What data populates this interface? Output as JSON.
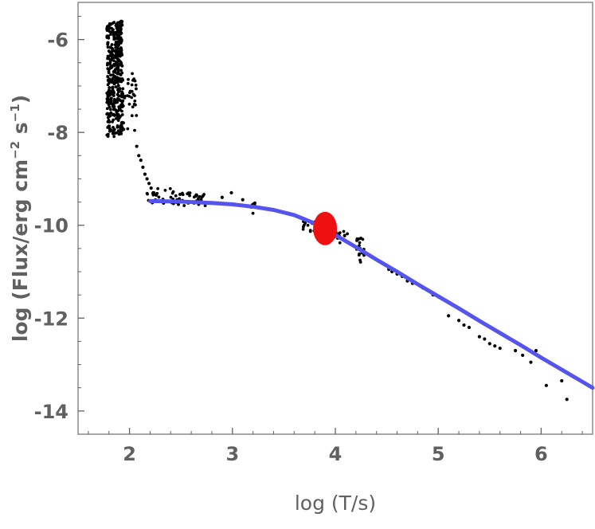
{
  "chart_data": {
    "type": "scatter",
    "title": "",
    "xlabel": "log (T/s)",
    "ylabel_parts": [
      "log (Flux/erg cm",
      "−2",
      " s",
      "−1",
      ")"
    ],
    "xlim": [
      1.5,
      6.5
    ],
    "ylim": [
      -14.5,
      -5.2
    ],
    "x_ticks": [
      2,
      3,
      4,
      5,
      6
    ],
    "y_ticks": [
      -6,
      -8,
      -10,
      -12,
      -14
    ],
    "x_tick_labels": [
      "2",
      "3",
      "4",
      "5",
      "6"
    ],
    "y_tick_labels": [
      "-6",
      "-8",
      "-10",
      "-12",
      "-14"
    ],
    "grid": false,
    "colors": {
      "points": "#000000",
      "fit": "#5555ee",
      "marker": "#ee1111",
      "axis": "#606060"
    },
    "series": [
      {
        "kind": "points",
        "clusters": [
          {
            "x": [
              1.78,
              1.93
            ],
            "y": [
              -8.1,
              -5.6
            ],
            "n": 420
          },
          {
            "x": [
              1.93,
              2.07
            ],
            "y": [
              -8.0,
              -6.7
            ],
            "n": 40
          },
          {
            "x": [
              2.15,
              2.45
            ],
            "y": [
              -9.55,
              -9.2
            ],
            "n": 25
          },
          {
            "x": [
              2.45,
              2.75
            ],
            "y": [
              -9.6,
              -9.3
            ],
            "n": 40
          },
          {
            "x": [
              3.18,
              3.22
            ],
            "y": [
              -9.75,
              -9.5
            ],
            "n": 10
          },
          {
            "x": [
              3.68,
              3.85
            ],
            "y": [
              -10.15,
              -9.9
            ],
            "n": 22
          },
          {
            "x": [
              3.97,
              4.12
            ],
            "y": [
              -10.4,
              -10.1
            ],
            "n": 18
          },
          {
            "x": [
              4.2,
              4.28
            ],
            "y": [
              -10.8,
              -10.25
            ],
            "n": 18
          }
        ],
        "x": [
          2.07,
          2.09,
          2.11,
          2.13,
          2.15,
          2.17,
          2.19,
          2.21,
          2.23,
          2.26,
          2.9,
          2.99,
          3.1,
          4.48,
          4.52,
          4.55,
          4.6,
          4.65,
          4.7,
          4.75,
          4.85,
          4.9,
          4.95,
          5.1,
          5.2,
          5.25,
          5.3,
          5.4,
          5.45,
          5.5,
          5.55,
          5.6,
          5.75,
          5.82,
          5.9,
          5.95,
          6.05,
          6.2,
          6.25
        ],
        "y": [
          -8.3,
          -8.5,
          -8.6,
          -8.75,
          -8.9,
          -9.0,
          -9.1,
          -9.2,
          -9.3,
          -9.35,
          -9.4,
          -9.3,
          -9.45,
          -10.85,
          -10.95,
          -11.0,
          -11.05,
          -11.1,
          -11.2,
          -11.25,
          -11.35,
          -11.4,
          -11.5,
          -11.95,
          -12.05,
          -12.15,
          -12.2,
          -12.4,
          -12.45,
          -12.55,
          -12.6,
          -12.65,
          -12.7,
          -12.8,
          -12.95,
          -12.7,
          -13.45,
          -13.35,
          -13.75
        ]
      },
      {
        "kind": "fit",
        "x": [
          2.2,
          2.5,
          2.8,
          3.0,
          3.2,
          3.4,
          3.6,
          3.8,
          4.0,
          4.2,
          4.4,
          4.6,
          4.8,
          5.0,
          5.2,
          5.4,
          5.6,
          5.8,
          6.0,
          6.2,
          6.4,
          6.5
        ],
        "y": [
          -9.48,
          -9.49,
          -9.52,
          -9.55,
          -9.6,
          -9.67,
          -9.78,
          -9.96,
          -10.21,
          -10.47,
          -10.74,
          -11.0,
          -11.27,
          -11.53,
          -11.79,
          -12.06,
          -12.32,
          -12.58,
          -12.85,
          -13.11,
          -13.37,
          -13.5
        ]
      },
      {
        "kind": "marker",
        "x": [
          3.9
        ],
        "y": [
          -10.07
        ]
      }
    ]
  }
}
